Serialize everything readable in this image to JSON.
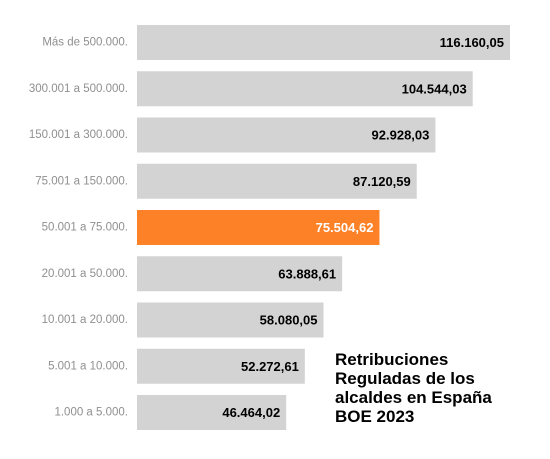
{
  "chart_data": {
    "type": "bar",
    "orientation": "horizontal",
    "title_lines": [
      "Retribuciones",
      "Reguladas de los",
      "alcaldes en España",
      "BOE 2023"
    ],
    "xlabel": "",
    "ylabel": "",
    "grid": false,
    "legend": "none",
    "xlim": [
      0,
      120000
    ],
    "categories": [
      "Más de 500.000.",
      "300.001 a 500.000.",
      "150.001 a 300.000.",
      "75.001 a 150.000.",
      "50.001 a 75.000.",
      "20.001 a 50.000.",
      "10.001 a 20.000.",
      "5.001 a 10.000.",
      "1.000 a 5.000."
    ],
    "values": [
      116160.05,
      104544.03,
      92928.03,
      87120.59,
      75504.62,
      63888.61,
      58080.05,
      52272.61,
      46464.02
    ],
    "value_labels": [
      "116.160,05",
      "104.544,03",
      "92.928,03",
      "87.120,59",
      "75.504,62",
      "63.888,61",
      "58.080,05",
      "52.272,61",
      "46.464,02"
    ],
    "highlight_index": 4,
    "colors": {
      "bar": "#d3d3d3",
      "highlight": "#fd8126",
      "value_text": "#000000",
      "highlight_text": "#ffffff",
      "category_text": "#8f8f8f"
    }
  }
}
